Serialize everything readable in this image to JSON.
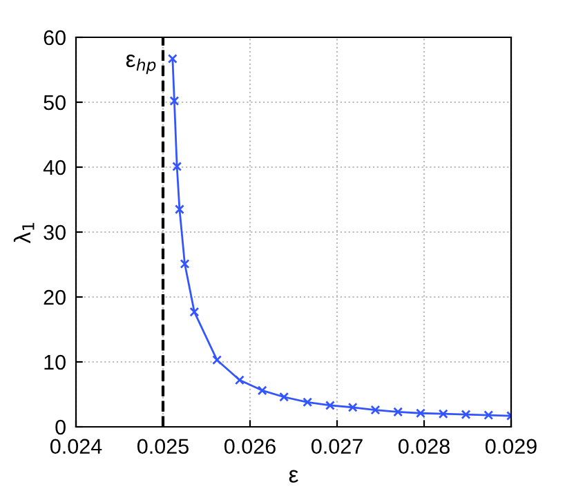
{
  "chart_data": {
    "type": "line",
    "xlabel": "ε",
    "ylabel": "λ$_{1}$",
    "x": [
      0.02511,
      0.02513,
      0.02516,
      0.02519,
      0.02525,
      0.02536,
      0.02562,
      0.02588,
      0.02614,
      0.02639,
      0.02666,
      0.02692,
      0.02718,
      0.02744,
      0.0277,
      0.02796,
      0.02822,
      0.02848,
      0.02874,
      0.029
    ],
    "series": [
      {
        "color": "#3355ff",
        "values": [
          56.7,
          50.2,
          40.1,
          33.5,
          25.1,
          17.7,
          10.3,
          7.2,
          5.6,
          4.6,
          3.8,
          3.3,
          3.0,
          2.6,
          2.3,
          2.1,
          2.0,
          1.9,
          1.8,
          1.7
        ]
      }
    ],
    "marker": "cross",
    "line_style": "solid",
    "xlim": [
      0.024,
      0.029
    ],
    "ylim": [
      0,
      60
    ],
    "xticks": [
      0.024,
      0.025,
      0.026,
      0.027,
      0.028,
      0.029
    ],
    "yticks": [
      0,
      10,
      20,
      30,
      40,
      50,
      60
    ],
    "ref_lines": [
      {
        "axis": "x",
        "value": 0.025,
        "label": "ε$_{hp}$",
        "color": "#000000",
        "line_style": "dashed"
      }
    ],
    "grid": true
  }
}
